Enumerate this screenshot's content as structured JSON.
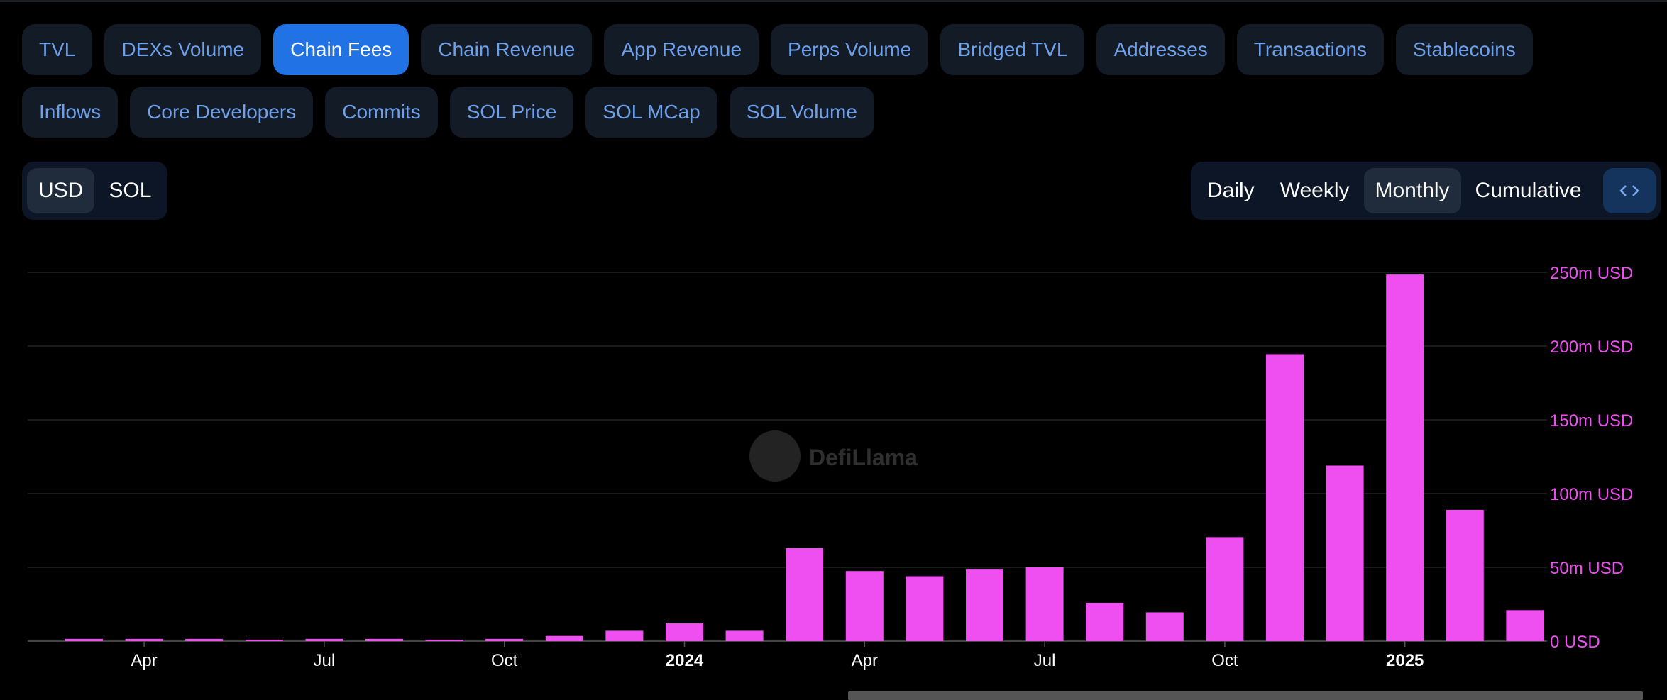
{
  "tabs": {
    "items": [
      "TVL",
      "DEXs Volume",
      "Chain Fees",
      "Chain Revenue",
      "App Revenue",
      "Perps Volume",
      "Bridged TVL",
      "Addresses",
      "Transactions",
      "Stablecoins",
      "Inflows",
      "Core Developers",
      "Commits",
      "SOL Price",
      "SOL MCap",
      "SOL Volume"
    ],
    "active": 2,
    "row_break": 10
  },
  "currency_toggle": {
    "items": [
      "USD",
      "SOL"
    ],
    "active": 0
  },
  "period_toggle": {
    "items": [
      "Daily",
      "Weekly",
      "Monthly",
      "Cumulative"
    ],
    "active": 2
  },
  "watermark": "DefiLlama",
  "chart_data": {
    "type": "bar",
    "color": "#ef4ff0",
    "grid": true,
    "categories": [
      null,
      "Apr",
      null,
      null,
      "Jul",
      null,
      null,
      "Oct",
      null,
      null,
      "2024",
      null,
      null,
      "Apr",
      null,
      null,
      "Jul",
      null,
      null,
      "Oct",
      null,
      null,
      "2025",
      null,
      null
    ],
    "series": [
      {
        "name": "Chain Fees",
        "color": "#ef4ff0",
        "values": [
          1500000,
          1500000,
          1500000,
          1000000,
          1500000,
          1500000,
          1000000,
          1500000,
          3500000,
          7000000,
          12000000,
          7000000,
          63000000,
          47500000,
          44000000,
          49000000,
          50000000,
          26000000,
          19500000,
          70500000,
          194500000,
          119000000,
          248500000,
          89000000,
          21000000
        ]
      }
    ],
    "ylim": [
      0,
      250000000
    ],
    "yticks": [
      {
        "value": 0,
        "label": "0 USD"
      },
      {
        "value": 50000000,
        "label": "50m USD"
      },
      {
        "value": 100000000,
        "label": "100m USD"
      },
      {
        "value": 150000000,
        "label": "150m USD"
      },
      {
        "value": 200000000,
        "label": "200m USD"
      },
      {
        "value": 250000000,
        "label": "250m USD"
      }
    ]
  }
}
